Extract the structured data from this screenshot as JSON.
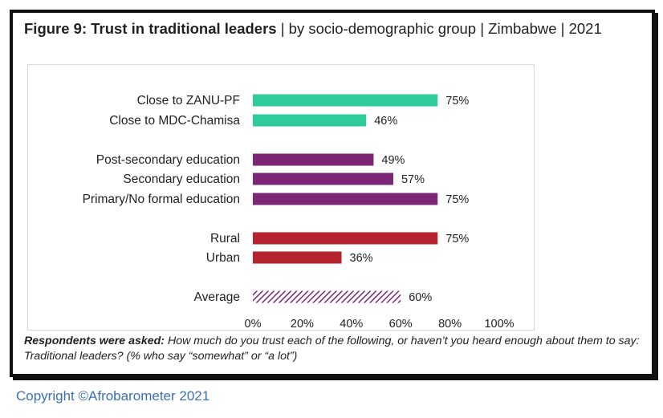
{
  "figure": {
    "title_bold": "Figure 9: Trust in traditional leaders",
    "title_rest": " | by socio-demographic group | Zimbabwe | 2021"
  },
  "note": {
    "lead": "Respondents were asked:",
    "text": " How much do you trust each of the following, or haven’t you heard enough about them to say: Traditional leaders? (% who say “somewhat” or “a lot”)"
  },
  "copyright": "Copyright ©Afrobarometer 2021",
  "colors": {
    "party": "#2ecc9a",
    "education": "#7b2775",
    "location": "#b5232e",
    "average": "#7b2775"
  },
  "chart_data": {
    "type": "bar",
    "orientation": "horizontal",
    "categories": [
      "Close to ZANU-PF",
      "Close to MDC-Chamisa",
      "Post-secondary education",
      "Secondary education",
      "Primary/No formal education",
      "Rural",
      "Urban",
      "Average"
    ],
    "values": [
      75,
      46,
      49,
      57,
      75,
      75,
      36,
      60
    ],
    "value_labels": [
      "75%",
      "46%",
      "49%",
      "57%",
      "75%",
      "75%",
      "36%",
      "60%"
    ],
    "groups": [
      "party",
      "party",
      "education",
      "education",
      "education",
      "location",
      "location",
      "average"
    ],
    "xlim": [
      0,
      100
    ],
    "xticks": [
      "0%",
      "20%",
      "40%",
      "60%",
      "80%",
      "100%"
    ],
    "xtick_values": [
      0,
      20,
      40,
      60,
      80,
      100
    ],
    "grid": false
  }
}
